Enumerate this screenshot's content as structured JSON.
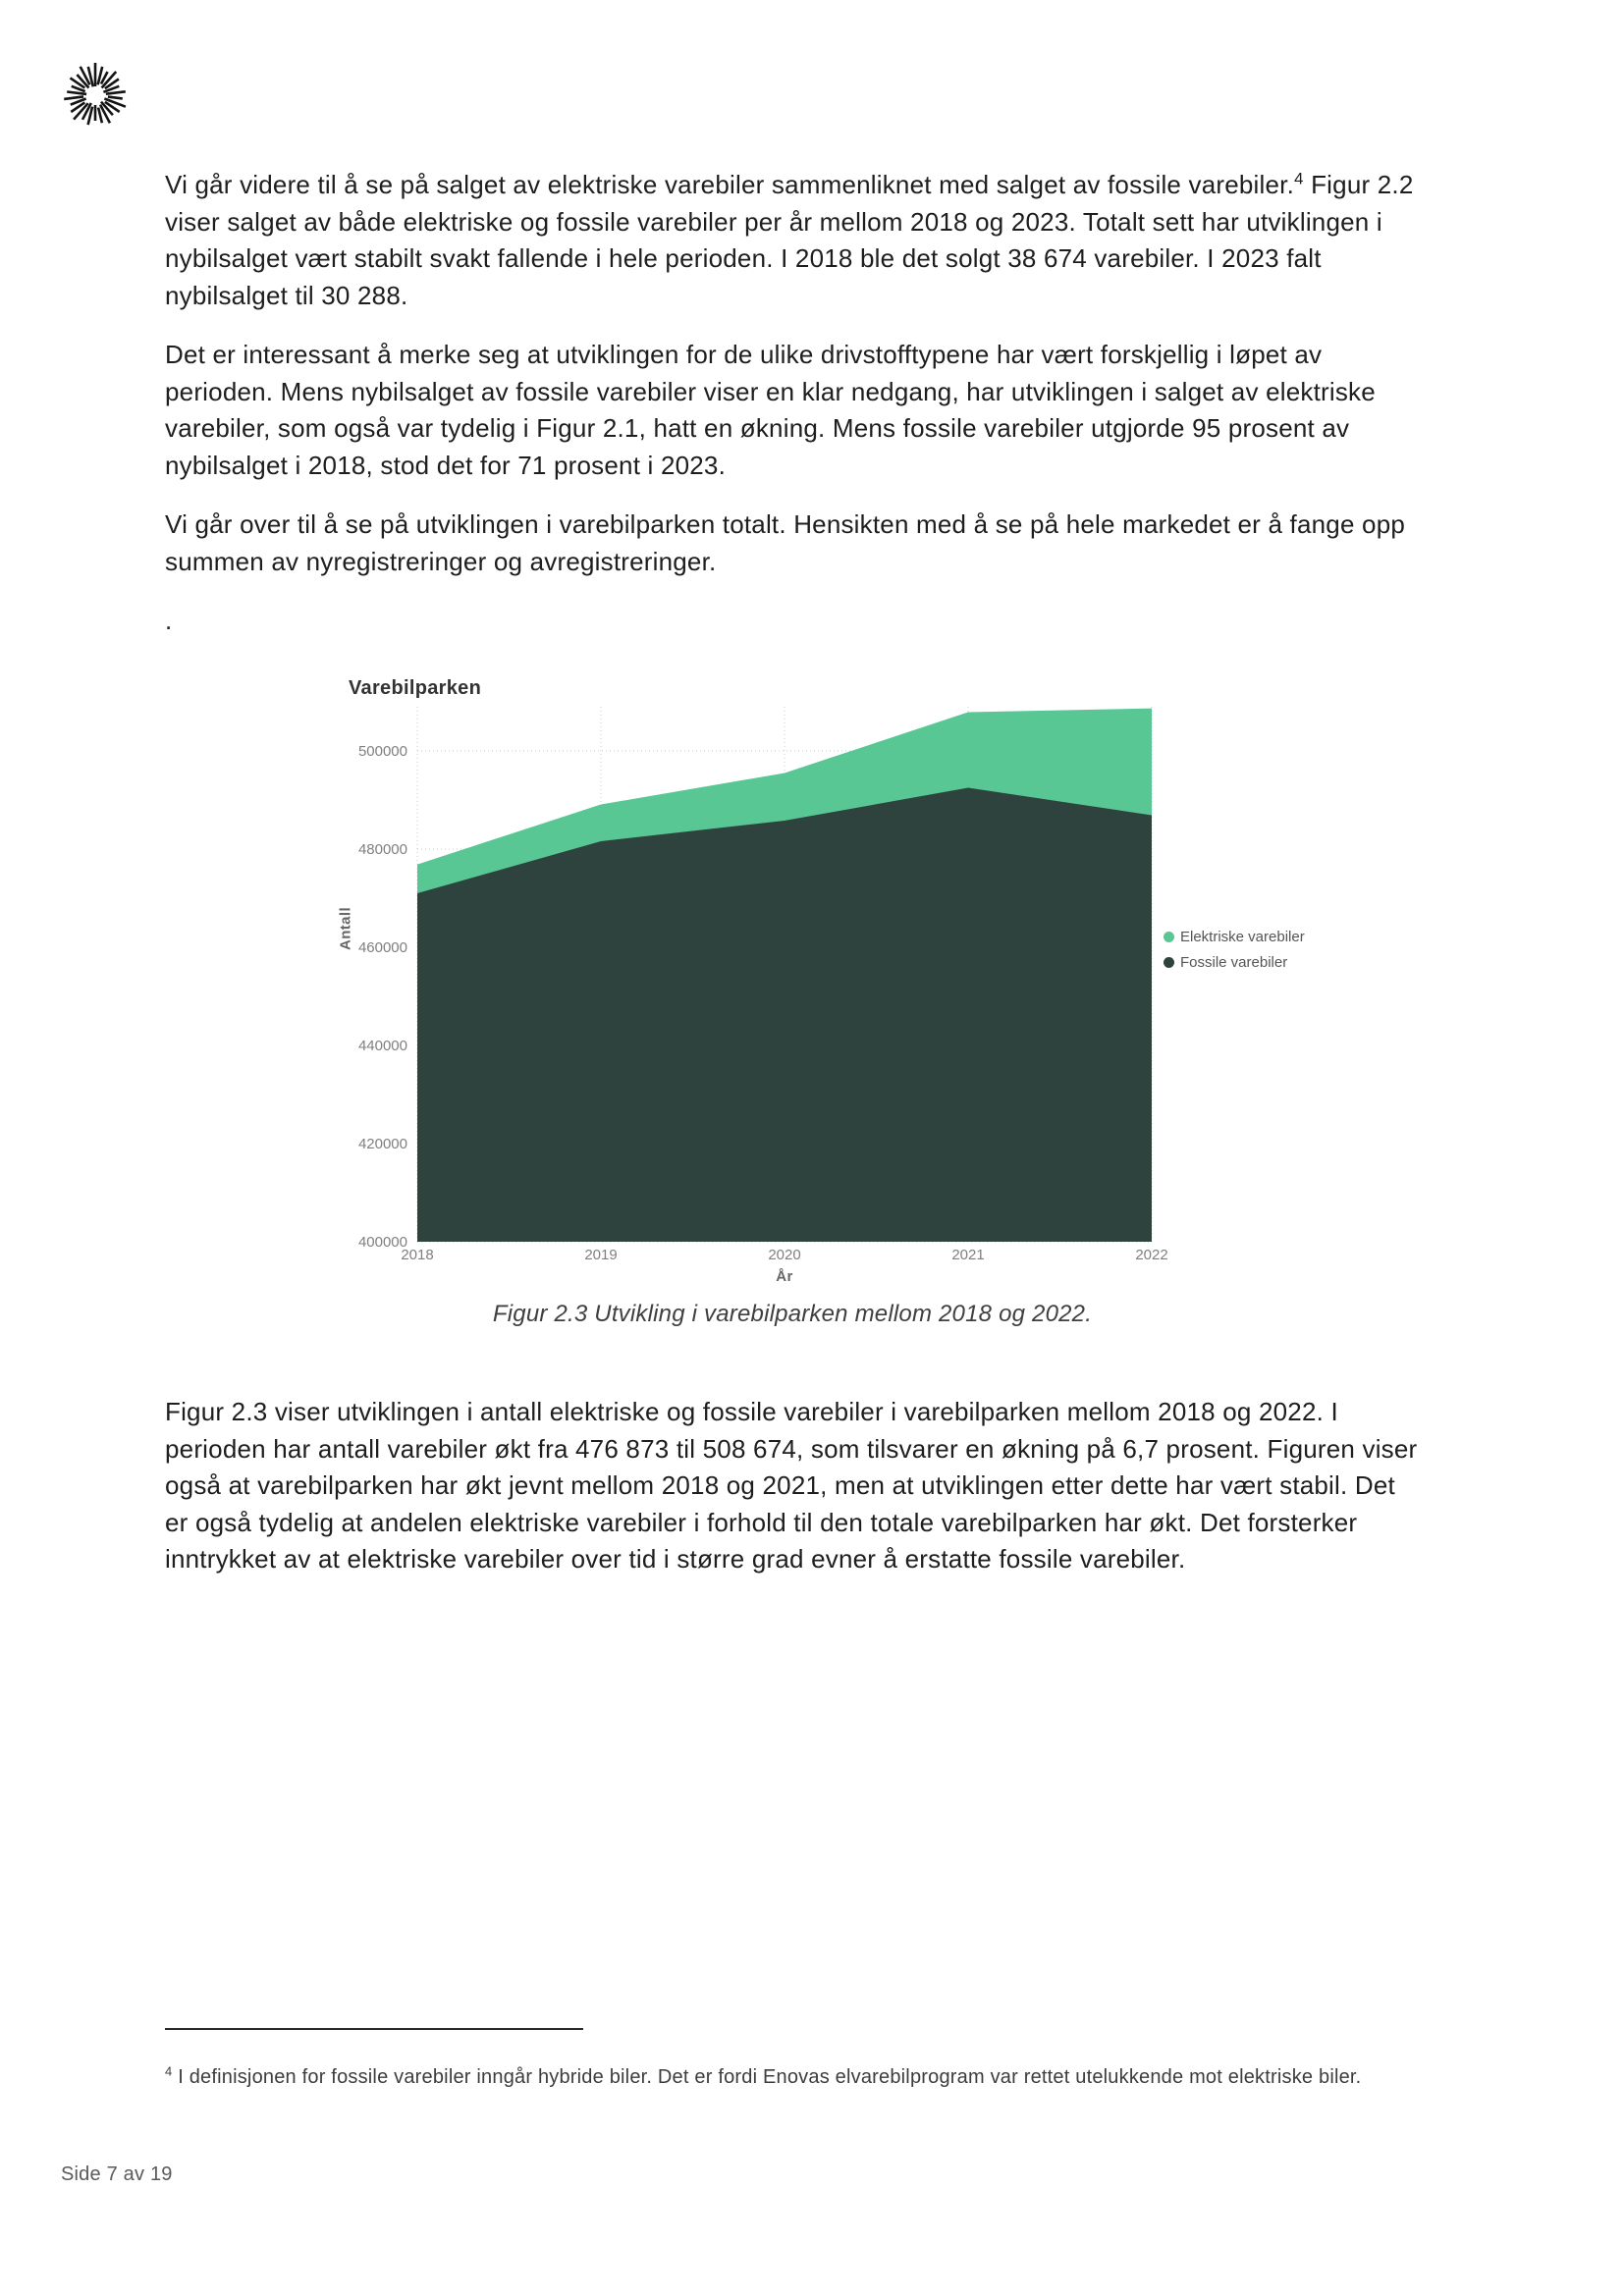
{
  "document": {
    "paragraph1": {
      "before_ref": "Vi går videre til å se på salget av elektriske varebiler sammenliknet med salget av fossile varebiler.",
      "ref": "4",
      "after_ref": " Figur 2.2 viser salget av både elektriske og fossile varebiler per år mellom 2018 og 2023. Totalt sett har utviklingen i nybilsalget vært stabilt svakt fallende i hele perioden. I 2018 ble det solgt 38 674 varebiler. I 2023 falt nybilsalget til 30 288."
    },
    "paragraph2": "Det er interessant å merke seg at utviklingen for de ulike drivstofftypene har vært forskjellig i løpet av perioden. Mens nybilsalget av fossile varebiler viser en klar nedgang, har utviklingen i salget av elektriske varebiler, som også var tydelig i Figur 2.1, hatt en økning. Mens fossile varebiler utgjorde 95 prosent av nybilsalget i 2018, stod det for 71 prosent i 2023.",
    "paragraph3": "Vi går over til å se på utviklingen i varebilparken totalt. Hensikten med å se på hele markedet er å fange opp summen av nyregistreringer og avregistreringer.",
    "orphan_dot": ".",
    "figure_caption": "Figur 2.3 Utvikling i varebilparken mellom 2018 og 2022.",
    "paragraph4": "Figur 2.3 viser utviklingen i antall elektriske og fossile varebiler i varebilparken mellom 2018 og 2022. I perioden har antall varebiler økt fra 476 873 til 508 674, som tilsvarer en økning på 6,7 prosent. Figuren viser også at varebilparken har økt jevnt mellom 2018 og 2021, men at utviklingen etter dette har vært stabil. Det er også tydelig at andelen elektriske varebiler i forhold til den totale varebilparken har økt. Det forsterker inntrykket av at elektriske varebiler over tid i større grad evner å erstatte fossile varebiler.",
    "footnote": {
      "ref": "4",
      "text": " I definisjonen for fossile varebiler inngår hybride biler. Det er fordi Enovas elvarebilprogram var rettet utelukkende mot elektriske biler."
    },
    "footer_text": "Side 7 av 19"
  },
  "logo": {
    "name": "starburst-logo"
  },
  "chart_data": {
    "type": "area",
    "stacked": true,
    "title": "Varebilparken",
    "xlabel": "År",
    "ylabel": "Antall",
    "categories": [
      "2018",
      "2019",
      "2020",
      "2021",
      "2022"
    ],
    "series": [
      {
        "name": "Fossile varebiler",
        "color": "#2e433e",
        "values": [
          471000,
          481600,
          485800,
          492500,
          486900
        ]
      },
      {
        "name": "Elektriske varebiler",
        "color": "#59c794",
        "values": [
          5873,
          7500,
          9700,
          15400,
          21774
        ]
      }
    ],
    "totals": [
      476873,
      489100,
      495500,
      507900,
      508674
    ],
    "ylim": [
      400000,
      509000
    ],
    "yticks": [
      400000,
      420000,
      440000,
      460000,
      480000,
      500000
    ],
    "grid": "dotted",
    "legend_position": "right",
    "legend_order": [
      "Elektriske varebiler",
      "Fossile varebiler"
    ]
  }
}
